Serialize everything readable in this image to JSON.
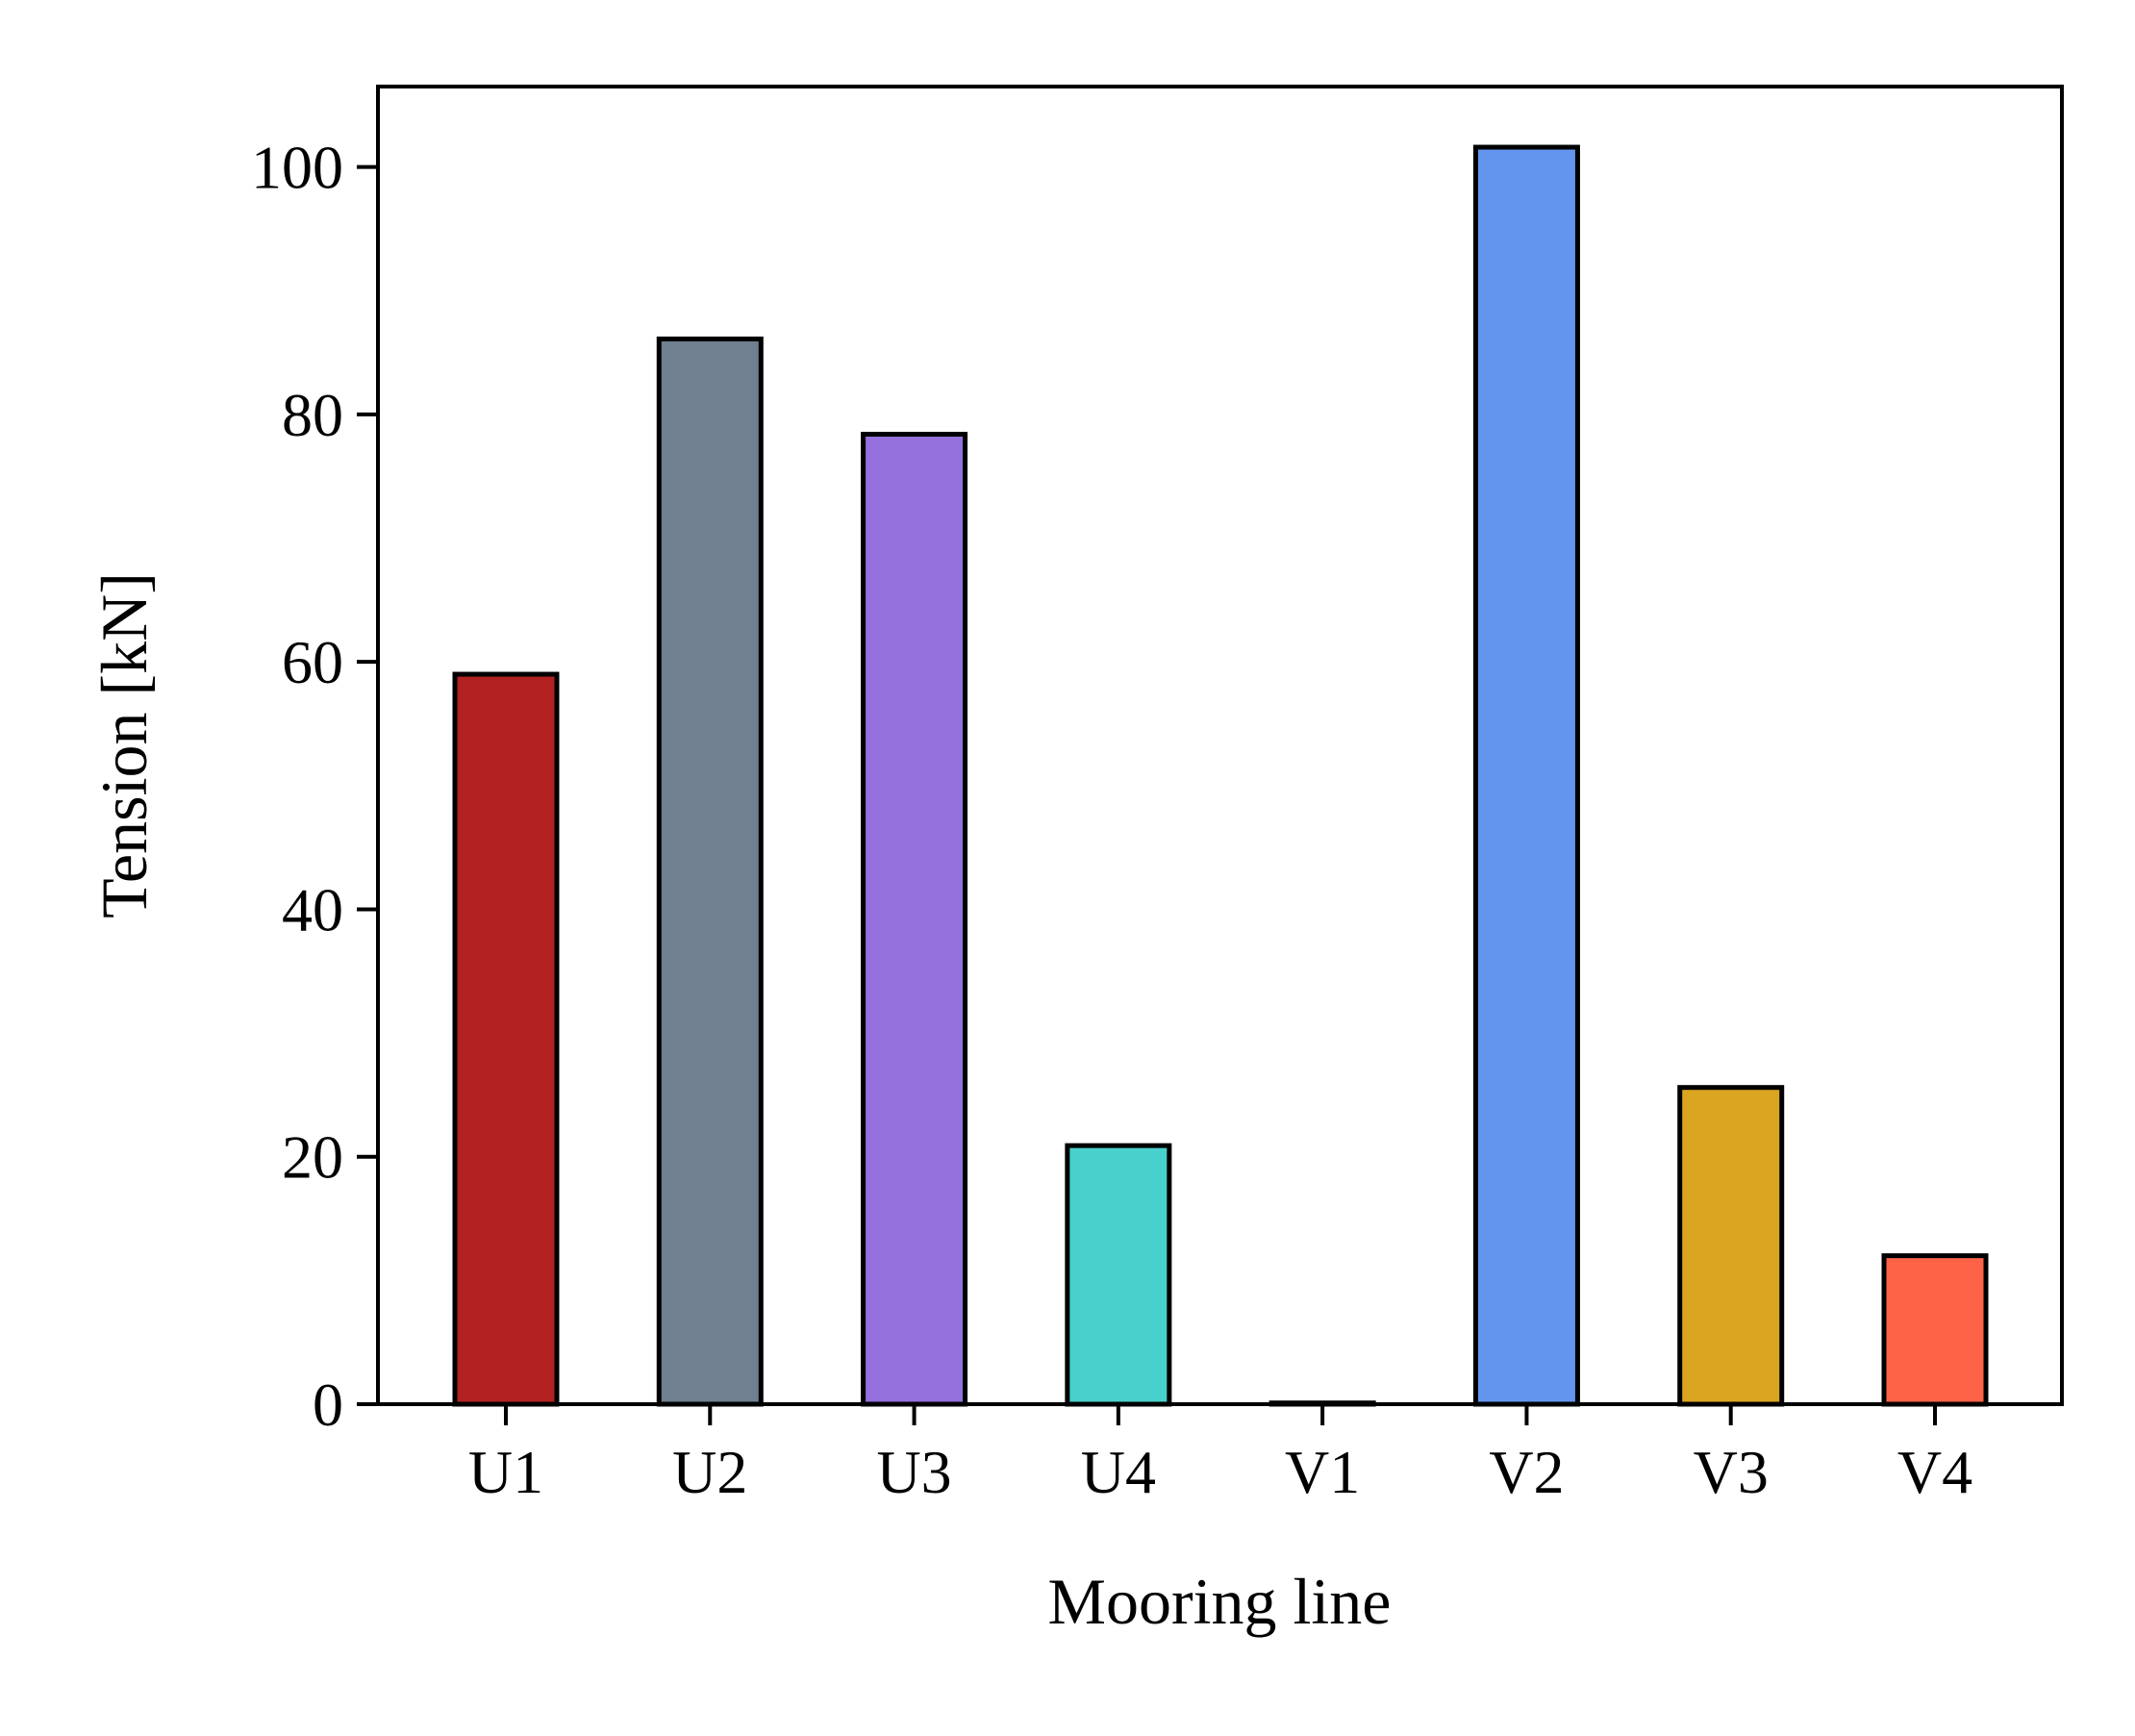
{
  "chart_data": {
    "type": "bar",
    "title": "",
    "xlabel": "Mooring line",
    "ylabel": "Tension [kN]",
    "categories": [
      "U1",
      "U2",
      "U3",
      "U4",
      "V1",
      "V2",
      "V3",
      "V4"
    ],
    "values": [
      59.0,
      86.1,
      78.4,
      20.9,
      0.1,
      101.6,
      25.6,
      12.0
    ],
    "colors": [
      "#b22222",
      "#708090",
      "#9370db",
      "#48d1cc",
      "#ffffff",
      "#6495ed",
      "#daa520",
      "#ff6347"
    ],
    "edge_color": "#000000",
    "ylim": [
      0,
      106.5
    ],
    "yticks": [
      0,
      20,
      40,
      60,
      80,
      100
    ],
    "grid": false,
    "legend": "none"
  }
}
